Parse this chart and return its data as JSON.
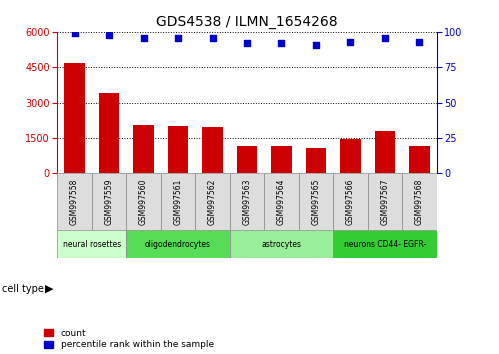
{
  "title": "GDS4538 / ILMN_1654268",
  "samples": [
    "GSM997558",
    "GSM997559",
    "GSM997560",
    "GSM997561",
    "GSM997562",
    "GSM997563",
    "GSM997564",
    "GSM997565",
    "GSM997566",
    "GSM997567",
    "GSM997568"
  ],
  "counts": [
    4700,
    3400,
    2050,
    2000,
    1950,
    1150,
    1150,
    1100,
    1450,
    1800,
    1150
  ],
  "percentiles": [
    99,
    98,
    96,
    96,
    96,
    92,
    92,
    91,
    93,
    96,
    93
  ],
  "bar_color": "#cc0000",
  "dot_color": "#0000cc",
  "ylim_left": [
    0,
    6000
  ],
  "ylim_right": [
    0,
    100
  ],
  "yticks_left": [
    0,
    1500,
    3000,
    4500,
    6000
  ],
  "yticks_right": [
    0,
    25,
    50,
    75,
    100
  ],
  "cell_type_data": [
    {
      "label": "neural rosettes",
      "start": 0,
      "end": 2,
      "color": "#ccffcc"
    },
    {
      "label": "oligodendrocytes",
      "start": 2,
      "end": 5,
      "color": "#55dd55"
    },
    {
      "label": "astrocytes",
      "start": 5,
      "end": 8,
      "color": "#99ee99"
    },
    {
      "label": "neurons CD44- EGFR-",
      "start": 8,
      "end": 11,
      "color": "#33cc33"
    }
  ],
  "legend_count_label": "count",
  "legend_pct_label": "percentile rank within the sample",
  "cell_type_label": "cell type",
  "background_color": "#ffffff"
}
